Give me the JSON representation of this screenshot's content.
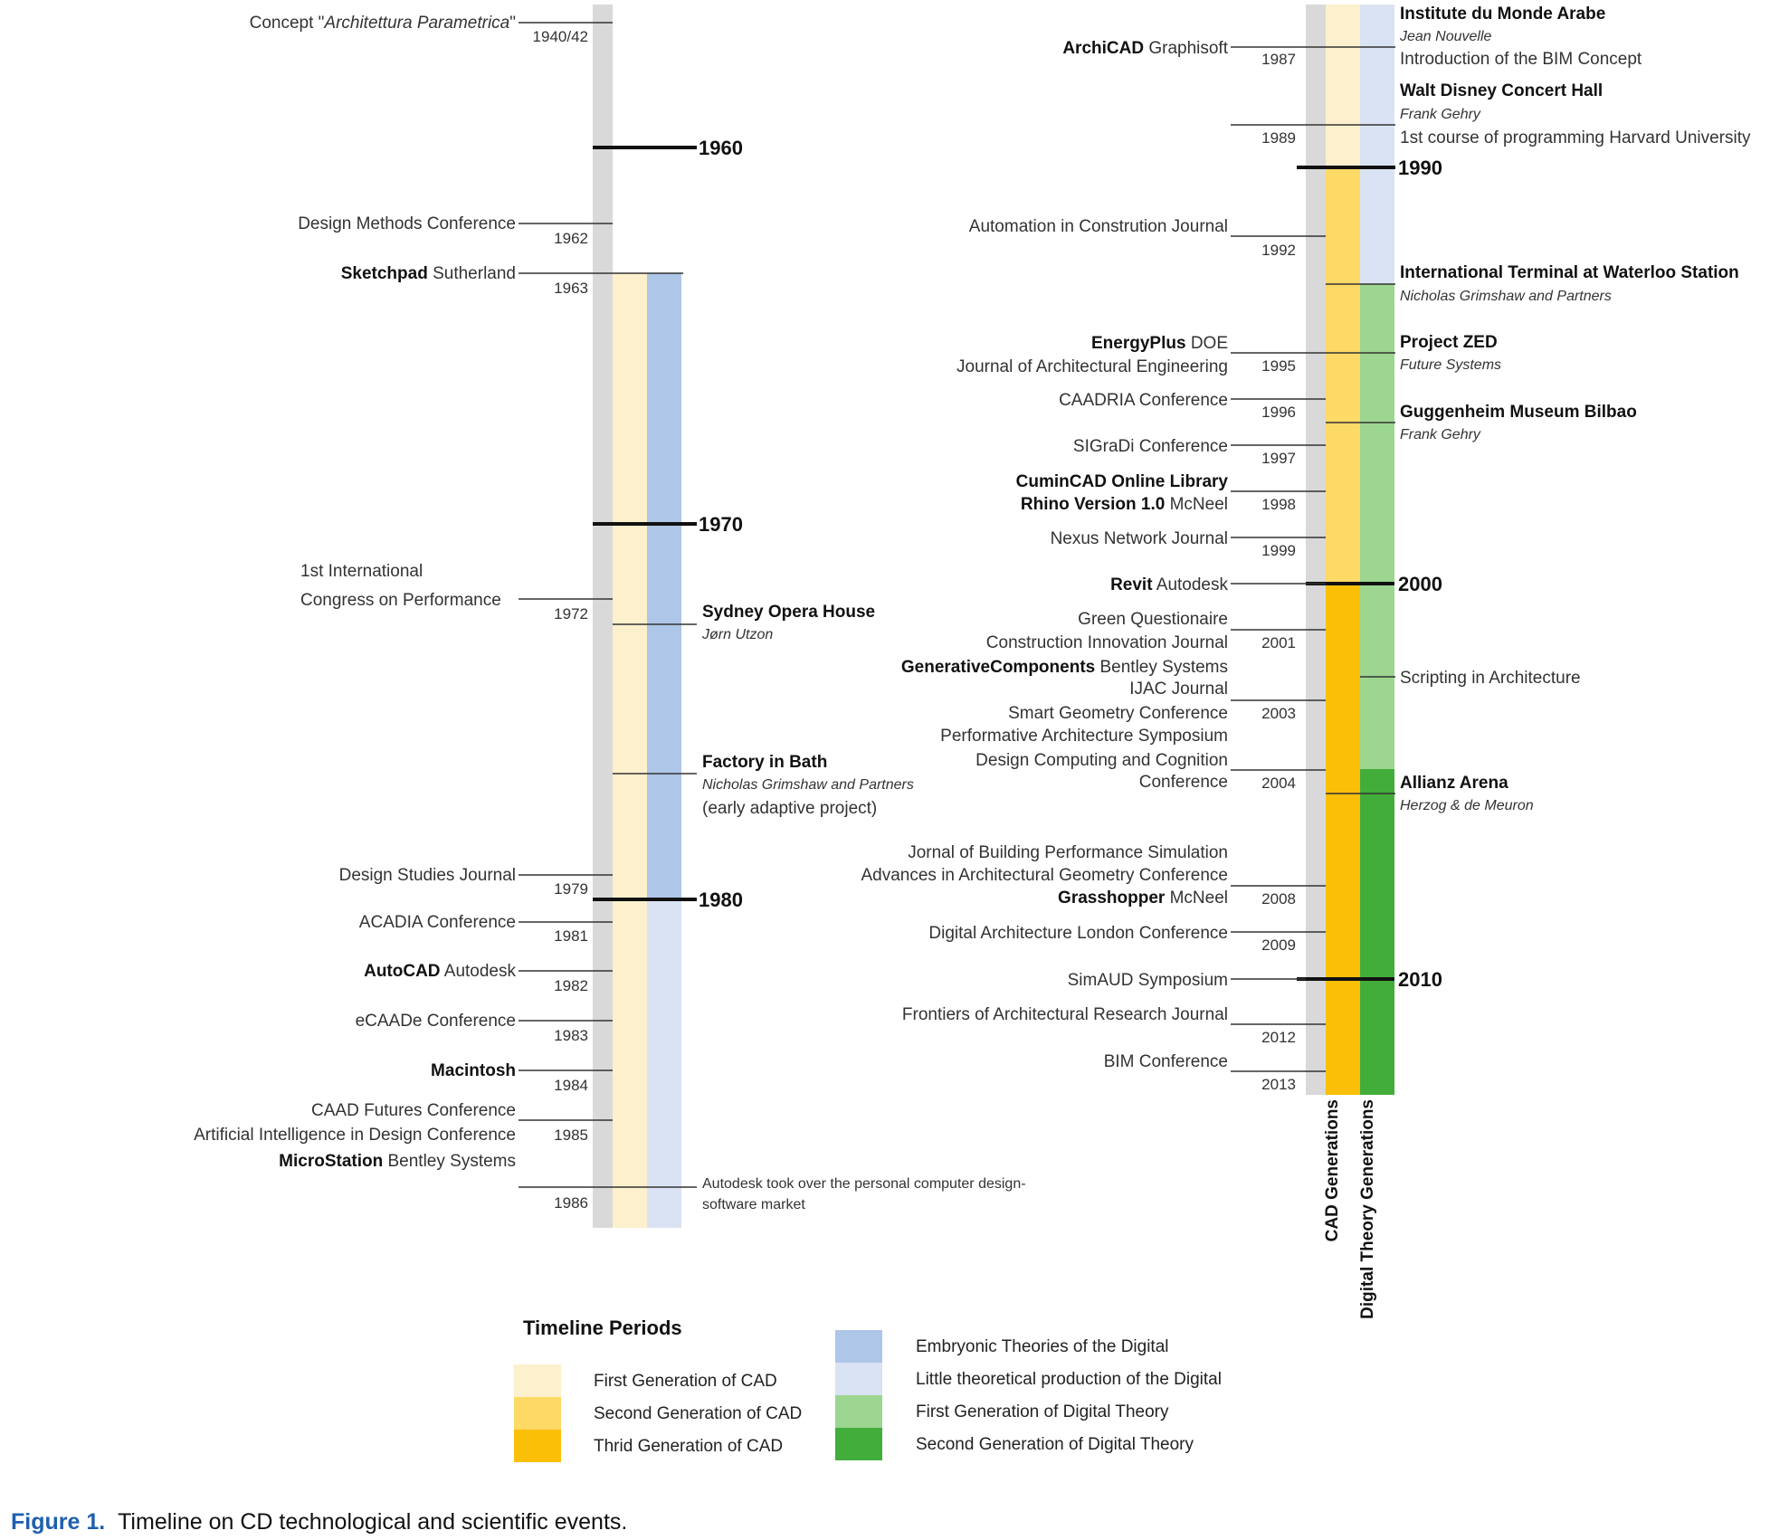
{
  "caption": {
    "label": "Figure 1.",
    "text": "Timeline on CD technological and scientific events."
  },
  "colors": {
    "grey_axis": "#d9d9d9",
    "cad1": "#fdf0cc",
    "cad2": "#fdd966",
    "cad3": "#fbbf08",
    "emb": "#aec6e8",
    "little": "#dae3f3",
    "dt1": "#9cd690",
    "dt2": "#43ad3c",
    "connector": "#333333"
  },
  "decades": [
    "1960",
    "1970",
    "1980",
    "1990",
    "2000",
    "2010"
  ],
  "axis_labels": {
    "cad": "CAD Generations",
    "digital": "Digital Theory Generations"
  },
  "legend": {
    "title": "Timeline Periods",
    "items": [
      {
        "label": "First Generation of CAD",
        "color": "#fdf0cc"
      },
      {
        "label": "Second Generation of CAD",
        "color": "#fdd966"
      },
      {
        "label": "Thrid Generation of CAD",
        "color": "#fbbf08"
      },
      {
        "label": "Embryonic Theories of the Digital",
        "color": "#aec6e8"
      },
      {
        "label": "Little theoretical production of the Digital",
        "color": "#dae3f3"
      },
      {
        "label": "First Generation of Digital Theory",
        "color": "#9cd690"
      },
      {
        "label": "Second Generation of Digital Theory",
        "color": "#43ad3c"
      }
    ]
  },
  "years": [
    "1940/42",
    "1962",
    "1963",
    "1972",
    "1979",
    "1981",
    "1982",
    "1983",
    "1984",
    "1985",
    "1986",
    "1987",
    "1989",
    "1992",
    "1995",
    "1996",
    "1997",
    "1998",
    "1999",
    "2001",
    "2003",
    "2004",
    "2008",
    "2009",
    "2012",
    "2013"
  ],
  "left_events": [
    {
      "pre": "Concept \"",
      "ital": "Architettura Parametrica",
      "post": "\""
    },
    {
      "text": "Design Methods Conference"
    },
    {
      "bold": "Sketchpad",
      "rest": " Sutherland"
    },
    {
      "line1": "1st International",
      "line2": "Congress on Performance"
    },
    {
      "text": "Design Studies Journal"
    },
    {
      "text": "ACADIA Conference"
    },
    {
      "bold": "AutoCAD",
      "rest": " Autodesk"
    },
    {
      "text": "eCAADe Conference"
    },
    {
      "bold": "Macintosh"
    },
    {
      "text": "CAAD Futures Conference"
    },
    {
      "text": "Artificial Intelligence in Design Conference"
    },
    {
      "bold": "MicroStation",
      "rest": " Bentley Systems"
    }
  ],
  "left_projects": [
    {
      "title": "Sydney Opera House",
      "author": "Jørn Utzon"
    },
    {
      "title": "Factory in Bath",
      "author": "Nicholas Grimshaw and Partners",
      "note": "(early adaptive project)"
    },
    {
      "line1": "Autodesk took over the personal computer design-",
      "line2": "software market"
    }
  ],
  "right_events": [
    {
      "bold": "ArchiCAD",
      "rest": " Graphisoft"
    },
    {
      "text": "Automation in Constrution Journal"
    },
    {
      "bold": "EnergyPlus",
      "rest": " DOE"
    },
    {
      "text": "Journal of Architectural Engineering"
    },
    {
      "text": "CAADRIA Conference"
    },
    {
      "text": "SIGraDi Conference"
    },
    {
      "bold": "CuminCAD Online Library"
    },
    {
      "bold": "Rhino Version 1.0",
      "rest": " McNeel"
    },
    {
      "text": "Nexus Network Journal"
    },
    {
      "bold": "Revit",
      "rest": " Autodesk"
    },
    {
      "text": "Green Questionaire"
    },
    {
      "text": "Construction Innovation Journal"
    },
    {
      "bold": "GenerativeComponents",
      "rest": " Bentley Systems"
    },
    {
      "text": "IJAC Journal"
    },
    {
      "text": "Smart Geometry Conference"
    },
    {
      "text": "Performative Architecture Symposium"
    },
    {
      "text": "Design Computing and Cognition"
    },
    {
      "text": "Conference"
    },
    {
      "text": "Jornal of Building Performance Simulation"
    },
    {
      "text": "Advances in Architectural Geometry Conference"
    },
    {
      "bold": "Grasshopper",
      "rest": " McNeel"
    },
    {
      "text": "Digital Architecture London Conference"
    },
    {
      "text": "SimAUD Symposium"
    },
    {
      "text": "Frontiers of Architectural Research Journal"
    },
    {
      "text": "BIM Conference"
    }
  ],
  "right_projects": [
    {
      "title": "Institute du Monde Arabe",
      "author": "Jean Nouvelle",
      "note": "Introduction of the BIM Concept"
    },
    {
      "title": "Walt Disney Concert Hall",
      "author": "Frank Gehry",
      "note": "1st course of programming Harvard University"
    },
    {
      "title": "International Terminal at Waterloo Station",
      "author": "Nicholas Grimshaw and Partners"
    },
    {
      "title": "Project ZED",
      "author": "Future Systems"
    },
    {
      "title": "Guggenheim Museum Bilbao",
      "author": "Frank Gehry"
    },
    {
      "text": "Scripting in Architecture"
    },
    {
      "title": "Allianz Arena",
      "author": "Herzog & de Meuron"
    }
  ]
}
